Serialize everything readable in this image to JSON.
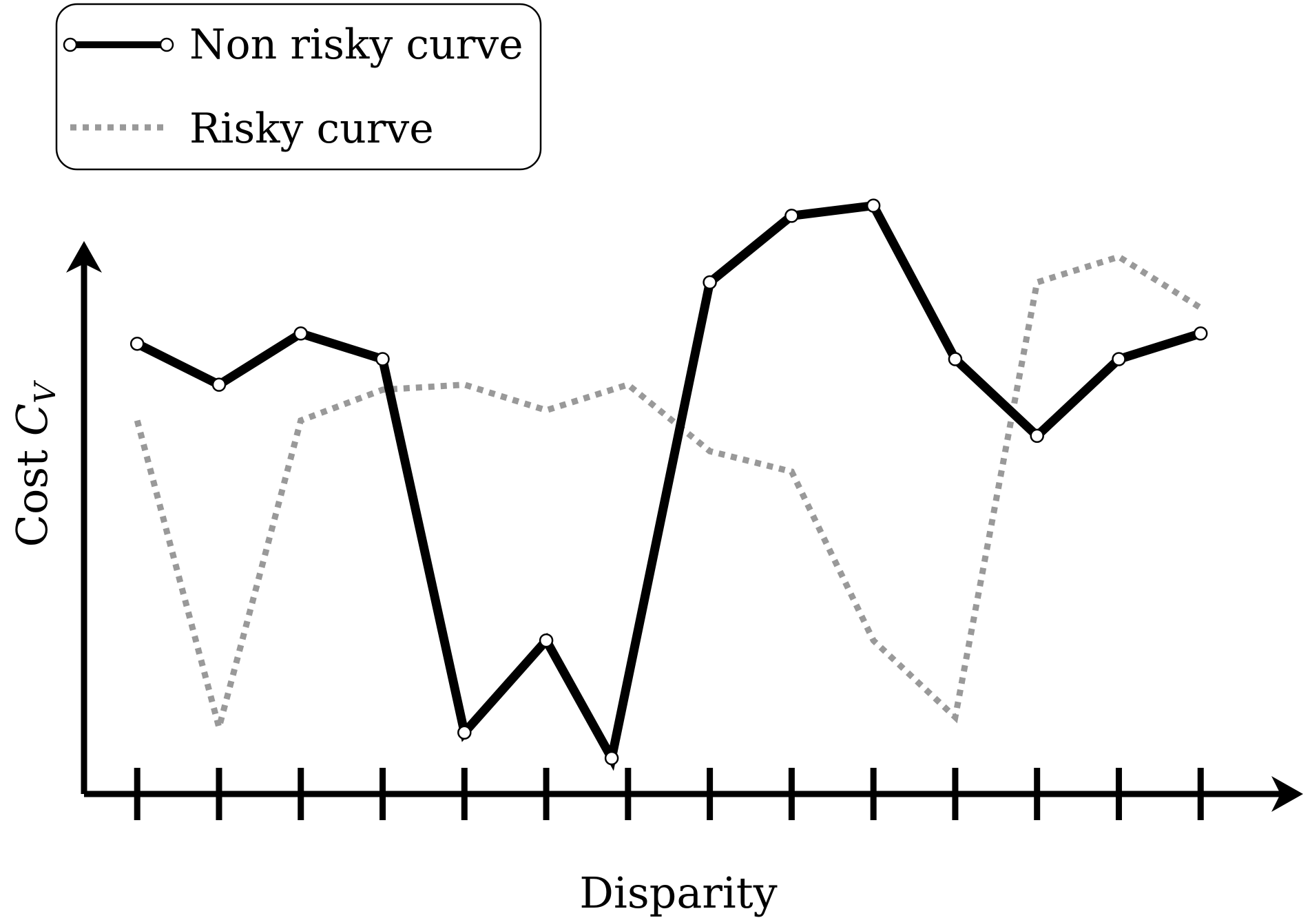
{
  "chart_data": {
    "type": "line",
    "xlabel": "Disparity",
    "ylabel": "Cost",
    "ylabel_symbol": "C",
    "ylabel_subscript": "V",
    "x": [
      1,
      2,
      3,
      4,
      5,
      6,
      7,
      8,
      9,
      10,
      11,
      12,
      13,
      14
    ],
    "xlim": [
      0.35,
      15.0
    ],
    "ylim": [
      0,
      100
    ],
    "grid": false,
    "legend": "top-left",
    "series": [
      {
        "name": "Non risky curve",
        "x": [
          1,
          2,
          3,
          4,
          5,
          6,
          6.8,
          8,
          9,
          10,
          11,
          12,
          13,
          14
        ],
        "values": [
          88,
          80,
          90,
          85,
          12,
          30,
          7,
          100,
          113,
          115,
          85,
          70,
          85,
          90
        ],
        "style": "solid-markers",
        "color": "#000000"
      },
      {
        "name": "Risky curve",
        "x": [
          1,
          2,
          3,
          4,
          5,
          6,
          7,
          8,
          9,
          10,
          11,
          12,
          13,
          14
        ],
        "values": [
          73,
          13,
          73,
          79,
          80,
          75,
          80,
          67,
          63,
          30,
          15,
          100,
          105,
          95
        ],
        "style": "dotted",
        "color": "#999999"
      }
    ]
  }
}
